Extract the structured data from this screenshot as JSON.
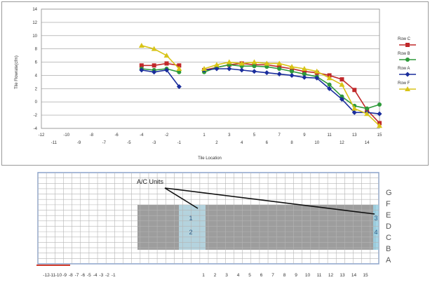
{
  "chart_data": {
    "type": "line",
    "xlabel": "Tile Location",
    "ylabel": "Tile Flowrate(cfm)",
    "ylim": [
      -4,
      14
    ],
    "yticks": [
      "14",
      "12",
      "10",
      "8",
      "6",
      "4",
      "2",
      "0",
      "-2",
      "-4"
    ],
    "xlim": [
      -12,
      15
    ],
    "xticks_top": [
      "-12",
      "-10",
      "-8",
      "-6",
      "-4",
      "-2",
      "1",
      "3",
      "5",
      "7",
      "9",
      "11",
      "13",
      "15"
    ],
    "xticks_bottom": [
      "-11",
      "-9",
      "-7",
      "-5",
      "-3",
      "-1",
      "2",
      "4",
      "6",
      "8",
      "10",
      "12",
      "14"
    ],
    "grid": true,
    "legend_position": "right",
    "series": [
      {
        "name": "Row C",
        "color": "#c0282a",
        "marker": "square",
        "x": [
          -4,
          -3,
          -2,
          -1,
          1,
          2,
          3,
          4,
          5,
          6,
          7,
          8,
          9,
          10,
          11,
          12,
          13,
          14,
          15
        ],
        "y": [
          5.5,
          5.5,
          5.8,
          5.5,
          4.8,
          5.2,
          5.6,
          5.8,
          5.6,
          5.6,
          5.3,
          5.0,
          4.6,
          4.4,
          4.0,
          3.4,
          1.8,
          -1.2,
          -3.2
        ]
      },
      {
        "name": "Row B",
        "color": "#2e9a3a",
        "marker": "circle",
        "x": [
          -4,
          -3,
          -2,
          -1,
          1,
          2,
          3,
          4,
          5,
          6,
          7,
          8,
          9,
          10,
          11,
          12,
          13,
          14,
          15
        ],
        "y": [
          5.0,
          4.8,
          5.0,
          4.5,
          4.5,
          5.2,
          5.6,
          5.4,
          5.4,
          5.3,
          5.0,
          4.6,
          4.2,
          3.8,
          2.6,
          0.8,
          -0.6,
          -1.0,
          -0.4
        ]
      },
      {
        "name": "Row A",
        "color": "#1a2d9c",
        "marker": "diamond",
        "x": [
          -4,
          -3,
          -2,
          -1,
          1,
          2,
          3,
          4,
          5,
          6,
          7,
          8,
          9,
          10,
          11,
          12,
          13,
          14,
          15
        ],
        "y": [
          4.8,
          4.5,
          4.8,
          2.3,
          4.8,
          5.0,
          5.0,
          4.8,
          4.6,
          4.4,
          4.2,
          4.0,
          3.7,
          3.6,
          2.0,
          0.4,
          -1.6,
          -1.6,
          -1.8
        ]
      },
      {
        "name": "Row F",
        "color": "#d8c418",
        "marker": "triangle",
        "x": [
          -4,
          -3,
          -2,
          -1,
          1,
          2,
          3,
          4,
          5,
          6,
          7,
          8,
          9,
          10,
          11,
          12,
          13,
          14,
          15
        ],
        "y": [
          8.5,
          8.0,
          7.0,
          5.0,
          5.0,
          5.6,
          6.0,
          5.8,
          6.0,
          5.8,
          5.8,
          5.3,
          5.0,
          4.6,
          3.6,
          2.6,
          -1.0,
          -1.8,
          -3.6
        ]
      }
    ]
  },
  "floor_plan": {
    "callout": "A/C Units",
    "row_labels": [
      "G",
      "F",
      "E",
      "D",
      "C",
      "B",
      "A"
    ],
    "col_labels": [
      "-12",
      "-11",
      "-10",
      "-9",
      "-8",
      "-7",
      "-6",
      "-5",
      "-4",
      "-3",
      "-2",
      "-1",
      "1",
      "2",
      "3",
      "4",
      "5",
      "6",
      "7",
      "8",
      "9",
      "10",
      "11",
      "12",
      "13",
      "14",
      "15"
    ],
    "unit_left_labels": [
      "1",
      "2"
    ],
    "unit_right_labels": [
      "3",
      "4"
    ]
  }
}
